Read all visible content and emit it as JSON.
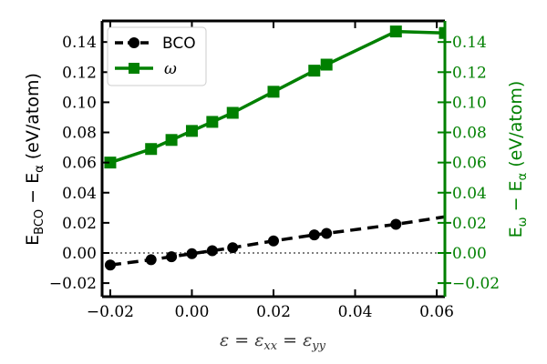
{
  "chart_data": {
    "type": "line",
    "xlabel": "ε = ε_xx = ε_yy",
    "ylabel_left": "E_BCO − E_α (eV/atom)",
    "ylabel_right": "E_ω − E_α (eV/atom)",
    "xlim": [
      -0.022,
      0.062
    ],
    "ylim": [
      -0.029,
      0.154
    ],
    "x_ticks": [
      -0.02,
      0.0,
      0.02,
      0.04,
      0.06
    ],
    "x_tick_labels": [
      "−0.02",
      "0.00",
      "0.02",
      "0.04",
      "0.06"
    ],
    "y_ticks": [
      -0.02,
      0.0,
      0.02,
      0.04,
      0.06,
      0.08,
      0.1,
      0.12,
      0.14
    ],
    "y_tick_labels": [
      "−0.02",
      "0.00",
      "0.02",
      "0.04",
      "0.06",
      "0.08",
      "0.10",
      "0.12",
      "0.14"
    ],
    "zero_line": true,
    "grid": false,
    "legend_position": "top-left",
    "series": [
      {
        "name": "BCO",
        "color": "#000000",
        "marker": "circle",
        "line_style": "dashed",
        "x": [
          -0.02,
          -0.01,
          -0.005,
          0.0,
          0.005,
          0.01,
          0.02,
          0.03,
          0.033,
          0.05
        ],
        "y": [
          -0.008,
          -0.0045,
          -0.0025,
          -0.0005,
          0.0015,
          0.0035,
          0.008,
          0.012,
          0.013,
          0.019
        ],
        "line_extends_to_x": 0.062,
        "line_extends_to_y": 0.024
      },
      {
        "name": "ω",
        "color": "#008000",
        "marker": "square",
        "line_style": "solid",
        "x": [
          -0.02,
          -0.01,
          -0.005,
          0.0,
          0.005,
          0.01,
          0.02,
          0.03,
          0.033,
          0.05,
          0.062
        ],
        "y": [
          0.06,
          0.069,
          0.075,
          0.081,
          0.087,
          0.093,
          0.107,
          0.121,
          0.125,
          0.147,
          0.146
        ]
      }
    ]
  }
}
